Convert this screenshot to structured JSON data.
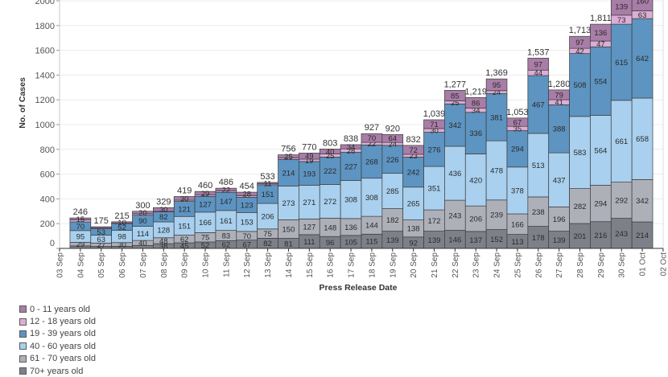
{
  "chart_data": {
    "type": "bar",
    "stacked": true,
    "title": "",
    "xlabel": "Press Release Date",
    "ylabel": "No. of Cases",
    "ylim": [
      0,
      2000
    ],
    "yticks": [
      0,
      200,
      400,
      600,
      800,
      1000,
      1200,
      1400,
      1600,
      1800,
      2000
    ],
    "grid": true,
    "legend_position": "bottom-left",
    "x_tick_labels": [
      "03 Sep",
      "04 Sep",
      "05 Sep",
      "06 Sep",
      "07 Sep",
      "08 Sep",
      "09 Sep",
      "10 Sep",
      "11 Sep",
      "12 Sep",
      "13 Sep",
      "14 Sep",
      "15 Sep",
      "16 Sep",
      "17 Sep",
      "18 Sep",
      "19 Sep",
      "20 Sep",
      "21 Sep",
      "22 Sep",
      "23 Sep",
      "24 Sep",
      "25 Sep",
      "26 Sep",
      "27 Sep",
      "28 Sep",
      "29 Sep",
      "30 Sep",
      "01 Oct",
      "02 Oct"
    ],
    "categories": [
      "04 Sep",
      "05 Sep",
      "06 Sep",
      "07 Sep",
      "08 Sep",
      "09 Sep",
      "10 Sep",
      "11 Sep",
      "12 Sep",
      "13 Sep",
      "14 Sep",
      "15 Sep",
      "16 Sep",
      "17 Sep",
      "18 Sep",
      "19 Sep",
      "20 Sep",
      "21 Sep",
      "22 Sep",
      "23 Sep",
      "24 Sep",
      "25 Sep",
      "26 Sep",
      "27 Sep",
      "28 Sep",
      "29 Sep",
      "30 Sep",
      "01 Oct"
    ],
    "series": [
      {
        "name": "70+ years old",
        "color": "#7d8089",
        "values": [
          20,
          16,
          17,
          24,
          38,
          45,
          52,
          62,
          67,
          82,
          81,
          111,
          96,
          105,
          115,
          139,
          92,
          139,
          146,
          137,
          152,
          113,
          178,
          139,
          201,
          216,
          243,
          214
        ],
        "unlabeled": [
          0,
          1,
          2,
          3
        ]
      },
      {
        "name": "61 - 70 years old",
        "color": "#adb0b9",
        "values": [
          29,
          27,
          30,
          40,
          48,
          62,
          75,
          83,
          70,
          75,
          150,
          127,
          148,
          136,
          144,
          182,
          138,
          172,
          243,
          206,
          239,
          166,
          238,
          196,
          282,
          294,
          292,
          342
        ],
        "unlabeled": []
      },
      {
        "name": "40 - 60 years old",
        "color": "#a9d0ee",
        "values": [
          95,
          63,
          98,
          114,
          128,
          151,
          166,
          161,
          153,
          206,
          273,
          271,
          272,
          308,
          308,
          285,
          265,
          351,
          436,
          420,
          478,
          378,
          513,
          437,
          583,
          564,
          661,
          658
        ],
        "unlabeled": []
      },
      {
        "name": "19 - 39 years old",
        "color": "#5d94c1",
        "values": [
          70,
          53,
          52,
          90,
          82,
          121,
          127,
          147,
          123,
          151,
          214,
          193,
          222,
          227,
          268,
          226,
          242,
          276,
          342,
          336,
          381,
          294,
          467,
          388,
          508,
          554,
          615,
          642
        ],
        "unlabeled": []
      },
      {
        "name": "12 - 18 years old",
        "color": "#dcaed5",
        "values": [
          17,
          7,
          8,
          12,
          3,
          10,
          11,
          11,
          13,
          8,
          13,
          19,
          25,
          28,
          22,
          24,
          23,
          30,
          25,
          34,
          24,
          35,
          44,
          41,
          42,
          47,
          73,
          63
        ],
        "unlabeled": [
          0,
          1,
          2,
          3,
          4,
          5,
          6,
          7,
          8,
          9,
          10
        ]
      },
      {
        "name": "0 - 11 years old",
        "color": "#a87da7",
        "values": [
          15,
          9,
          10,
          20,
          30,
          30,
          29,
          22,
          28,
          11,
          25,
          49,
          40,
          34,
          70,
          64,
          72,
          71,
          85,
          86,
          95,
          67,
          97,
          79,
          97,
          136,
          139,
          160
        ],
        "unlabeled": [
          1
        ]
      }
    ],
    "total_labels": [
      "246",
      "175",
      "215",
      "300",
      "329",
      "419",
      "460",
      "486",
      "454",
      "533",
      "756",
      "770",
      "803",
      "838",
      "927",
      "920",
      "832",
      "1,039",
      "1,277",
      "1,219",
      "1,369",
      "1,053",
      "1,537",
      "1,280",
      "1,713",
      "1,811",
      null,
      null
    ],
    "totals": [
      246,
      175,
      215,
      300,
      329,
      419,
      460,
      486,
      454,
      533,
      756,
      770,
      803,
      838,
      927,
      920,
      832,
      1039,
      1277,
      1219,
      1369,
      1053,
      1537,
      1280,
      1713,
      1811,
      null,
      null
    ]
  },
  "legend": {
    "items": [
      {
        "label": "0 - 11 years old",
        "color": "#a87da7"
      },
      {
        "label": "12 - 18 years old",
        "color": "#dcaed5"
      },
      {
        "label": "19 - 39 years old",
        "color": "#5d94c1"
      },
      {
        "label": "40 - 60 years old",
        "color": "#a9d0ee"
      },
      {
        "label": "61 - 70 years old",
        "color": "#adb0b9"
      },
      {
        "label": "70+ years old",
        "color": "#7d8089"
      }
    ]
  }
}
